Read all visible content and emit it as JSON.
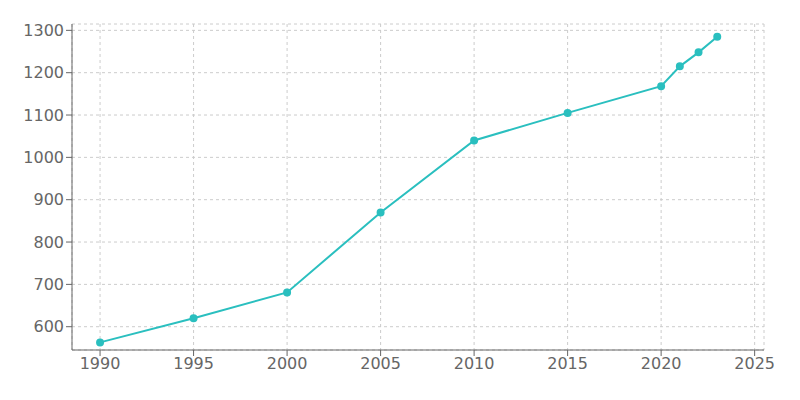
{
  "chart_data": {
    "type": "line",
    "x": [
      1990,
      1995,
      2000,
      2005,
      2010,
      2015,
      2020,
      2021,
      2022,
      2023
    ],
    "values": [
      563,
      620,
      681,
      870,
      1040,
      1105,
      1168,
      1215,
      1248,
      1285
    ],
    "color": "#2abfbf",
    "marker": "circle",
    "xlim": [
      1988.5,
      2025.5
    ],
    "ylim": [
      545,
      1315
    ],
    "xticks": [
      1990,
      1995,
      2000,
      2005,
      2010,
      2015,
      2020,
      2025
    ],
    "yticks": [
      600,
      700,
      800,
      900,
      1000,
      1100,
      1200,
      1300
    ],
    "grid": true
  }
}
